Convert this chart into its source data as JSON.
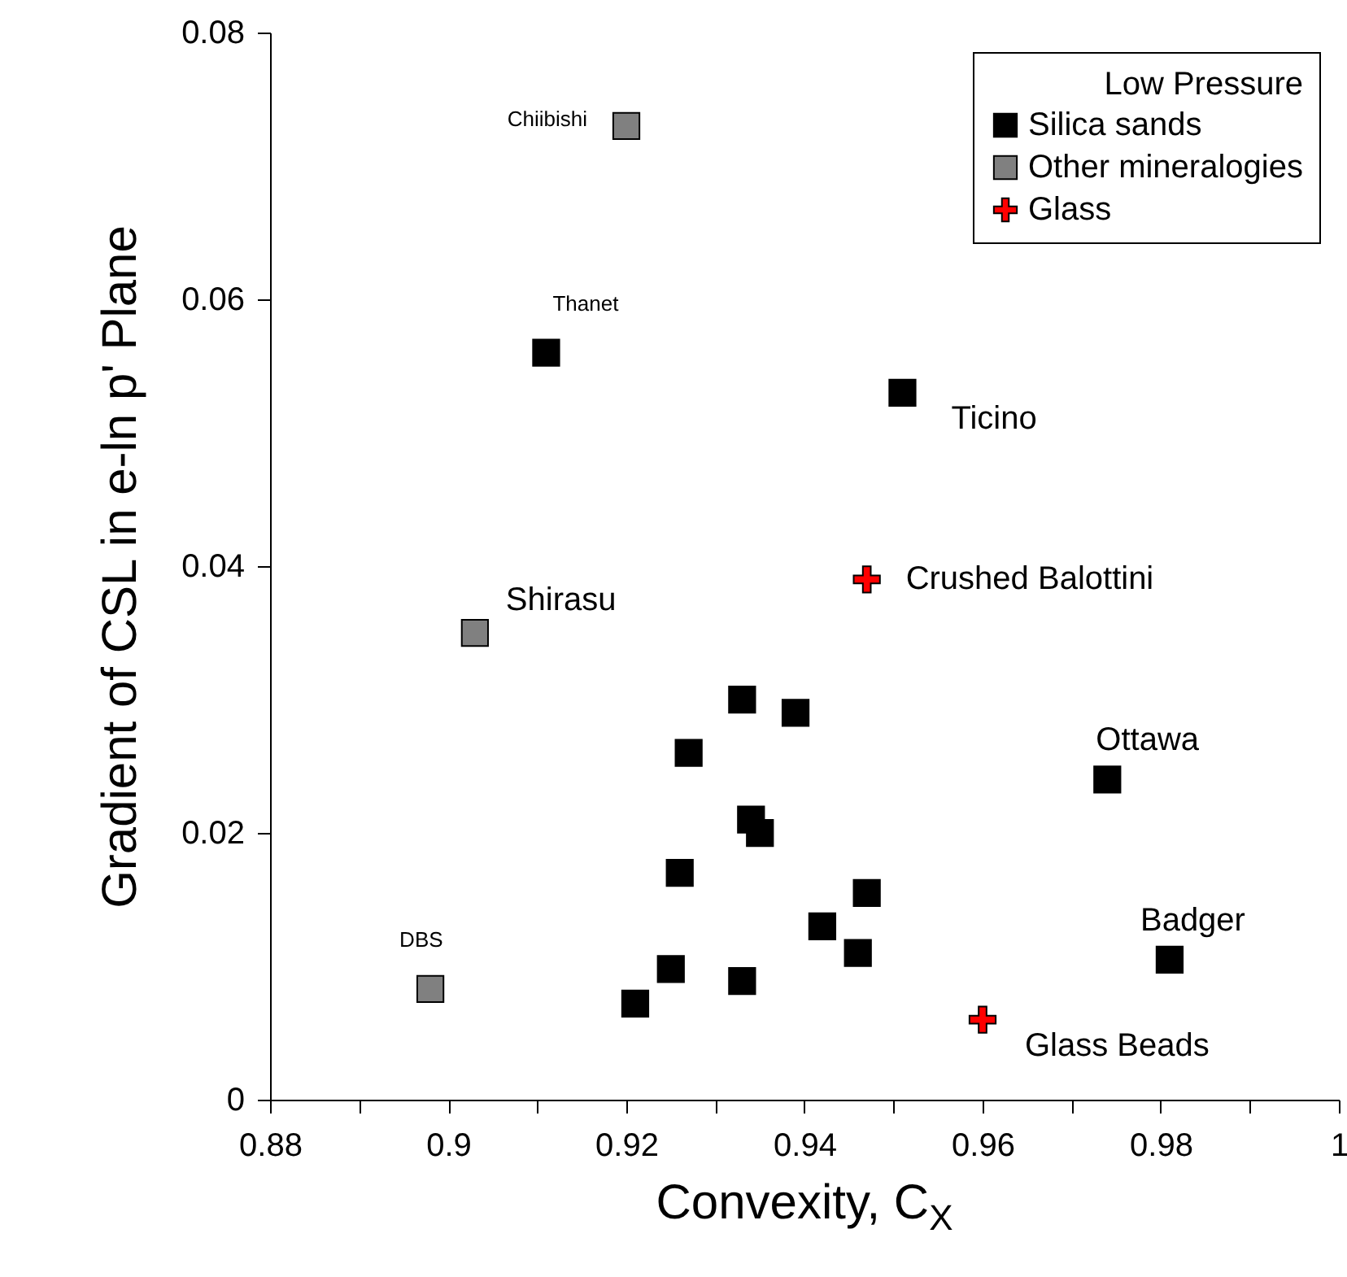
{
  "chart_data": {
    "type": "scatter",
    "xlabel": "Convexity, C$_{X}$",
    "ylabel": "Gradient of CSL in e-ln p' Plane",
    "legend_title": "Low Pressure",
    "legend": "top right",
    "grid": false,
    "xlim": [
      0.88,
      1
    ],
    "xticks": [
      0.88,
      {
        "value": 0.89,
        "label": null
      },
      0.9,
      {
        "value": 0.91,
        "label": null
      },
      0.92,
      {
        "value": 0.93,
        "label": null
      },
      0.94,
      {
        "value": 0.95,
        "label": null
      },
      0.96,
      {
        "value": 0.97,
        "label": null
      },
      0.98,
      {
        "value": 0.99,
        "label": null
      },
      1
    ],
    "ylim": [
      0,
      0.08
    ],
    "yticks": [
      0,
      0.02,
      0.04,
      0.06,
      0.08
    ],
    "series": [
      {
        "name": "Silica sands",
        "color": "#000000",
        "marker": "square",
        "x": [
          0.933,
          0.939,
          0.927,
          0.934,
          0.935,
          0.926,
          0.947,
          0.942,
          0.946,
          0.925,
          0.933,
          0.921,
          0.974,
          0.981,
          0.911,
          0.951
        ],
        "values": [
          0.03,
          0.029,
          0.026,
          0.021,
          0.02,
          0.017,
          0.0155,
          0.013,
          0.011,
          0.0098,
          0.0089,
          0.0072,
          0.024,
          0.0105,
          0.056,
          0.053
        ]
      },
      {
        "name": "Other mineralogies",
        "color": "#808080",
        "marker": "square",
        "x": [
          0.92,
          0.903,
          0.898
        ],
        "values": [
          0.073,
          0.035,
          0.0083
        ]
      },
      {
        "name": "Glass",
        "color": "#ff0000",
        "marker": "cross",
        "x": [
          0.947,
          0.96
        ],
        "values": [
          0.039,
          0.006
        ]
      }
    ],
    "annotations": [
      {
        "text": "Chiibishi",
        "x": 0.92,
        "y": 0.073
      },
      {
        "text": "Thanet",
        "x": 0.911,
        "y": 0.056
      },
      {
        "text": "Ticino",
        "x": 0.951,
        "y": 0.053
      },
      {
        "text": "Crushed Balottini",
        "x": 0.947,
        "y": 0.039
      },
      {
        "text": "Shirasu",
        "x": 0.903,
        "y": 0.035
      },
      {
        "text": "Ottawa",
        "x": 0.974,
        "y": 0.024
      },
      {
        "text": "Badger",
        "x": 0.981,
        "y": 0.0105
      },
      {
        "text": "DBS",
        "x": 0.898,
        "y": 0.0083
      },
      {
        "text": "Glass Beads",
        "x": 0.96,
        "y": 0.006
      }
    ]
  }
}
